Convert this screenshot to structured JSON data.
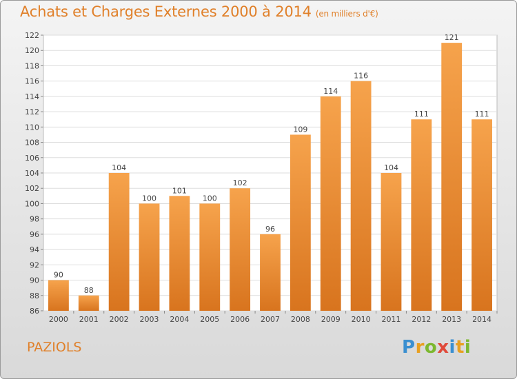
{
  "header": {
    "title": "Achats et Charges Externes 2000 à 2014",
    "subtitle": "(en milliers d'€)"
  },
  "footer": {
    "place": "PAZIOLS",
    "logo_letters": [
      "P",
      "r",
      "o",
      "x",
      "i",
      "t",
      "i"
    ],
    "logo_colors": [
      "#3a8fd0",
      "#e8a020",
      "#7cb82f",
      "#e04a3a",
      "#3a8fd0",
      "#e8a020",
      "#7cb82f"
    ]
  },
  "colors": {
    "bar_top": "#f6a34c",
    "bar_bottom": "#d8741e",
    "accent": "#e0802a"
  },
  "chart_data": {
    "type": "bar",
    "title": "Achats et Charges Externes 2000 à 2014",
    "subtitle": "(en milliers d'€)",
    "categories": [
      "2000",
      "2001",
      "2002",
      "2003",
      "2004",
      "2005",
      "2006",
      "2007",
      "2008",
      "2009",
      "2010",
      "2011",
      "2012",
      "2013",
      "2014"
    ],
    "values": [
      90,
      88,
      104,
      100,
      101,
      100,
      102,
      96,
      109,
      114,
      116,
      104,
      111,
      121,
      111
    ],
    "ylim": [
      86,
      122
    ],
    "yticks": [
      86,
      88,
      90,
      92,
      94,
      96,
      98,
      100,
      102,
      104,
      106,
      108,
      110,
      112,
      114,
      116,
      118,
      120,
      122
    ],
    "grid": true,
    "legend": "none"
  }
}
